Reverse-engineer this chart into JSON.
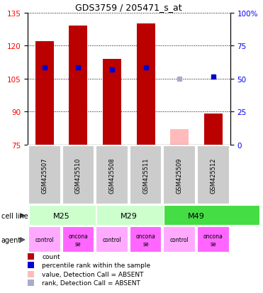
{
  "title": "GDS3759 / 205471_s_at",
  "samples": [
    "GSM425507",
    "GSM425510",
    "GSM425508",
    "GSM425511",
    "GSM425509",
    "GSM425512"
  ],
  "agents": [
    "control",
    "onconase",
    "control",
    "onconase",
    "control",
    "onconase"
  ],
  "count_values": [
    122,
    129,
    114,
    130,
    null,
    89
  ],
  "count_absent": [
    null,
    null,
    null,
    null,
    82,
    null
  ],
  "percentile_values": [
    110,
    110,
    109,
    110,
    null,
    106
  ],
  "percentile_absent": [
    null,
    null,
    null,
    null,
    105,
    null
  ],
  "ylim_left": [
    75,
    135
  ],
  "ylim_right": [
    0,
    100
  ],
  "yticks_left": [
    75,
    90,
    105,
    120,
    135
  ],
  "yticks_right": [
    0,
    25,
    50,
    75,
    100
  ],
  "bar_color_present": "#bb0000",
  "bar_color_absent": "#ffbbbb",
  "dot_color_present": "#0000cc",
  "dot_color_absent": "#aaaacc",
  "cell_line_colors": {
    "M25": "#ccffcc",
    "M29": "#ccffcc",
    "M49": "#44dd44"
  },
  "cell_line_names": [
    "M25",
    "M29",
    "M49"
  ],
  "cell_line_spans": [
    [
      0,
      1
    ],
    [
      2,
      3
    ],
    [
      4,
      5
    ]
  ],
  "agent_color_control": "#ffaaff",
  "agent_color_onconase": "#ff66ff",
  "bar_width": 0.55,
  "dot_size": 5,
  "sample_box_color": "#cccccc"
}
